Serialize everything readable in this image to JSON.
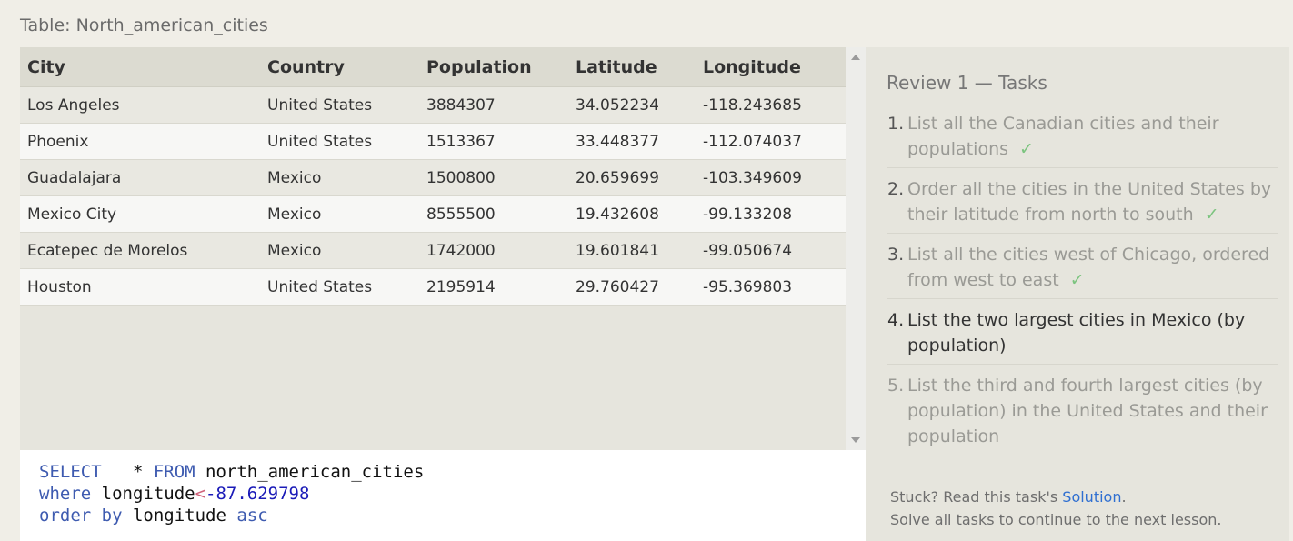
{
  "table": {
    "caption": "Table: North_american_cities",
    "columns": [
      "City",
      "Country",
      "Population",
      "Latitude",
      "Longitude"
    ],
    "rows": [
      [
        "Los Angeles",
        "United States",
        "3884307",
        "34.052234",
        "-118.243685"
      ],
      [
        "Phoenix",
        "United States",
        "1513367",
        "33.448377",
        "-112.074037"
      ],
      [
        "Guadalajara",
        "Mexico",
        "1500800",
        "20.659699",
        "-103.349609"
      ],
      [
        "Mexico City",
        "Mexico",
        "8555500",
        "19.432608",
        "-99.133208"
      ],
      [
        "Ecatepec de Morelos",
        "Mexico",
        "1742000",
        "19.601841",
        "-99.050674"
      ],
      [
        "Houston",
        "United States",
        "2195914",
        "29.760427",
        "-95.369803"
      ]
    ]
  },
  "editor": {
    "line1": {
      "kw1": "SELECT",
      "rest": "   * ",
      "kw2": "FROM",
      "table": " north_american_cities"
    },
    "line2": {
      "kw": "where",
      "col": " longitude",
      "op": "<",
      "num": "-87.629798"
    },
    "line3": {
      "kw1": "order by",
      "col": " longitude ",
      "kw2": "asc"
    }
  },
  "tasks": {
    "title": "Review 1 — Tasks",
    "items": [
      {
        "num": "1.",
        "text": "List all the Canadian cities and their populations",
        "status": "done"
      },
      {
        "num": "2.",
        "text": "Order all the cities in the United States by their latitude from north to south",
        "status": "done"
      },
      {
        "num": "3.",
        "text": "List all the cities west of Chicago, ordered from west to east",
        "status": "done"
      },
      {
        "num": "4.",
        "text": "List the two largest cities in Mexico (by population)",
        "status": "current"
      },
      {
        "num": "5.",
        "text": "List the third and fourth largest cities (by population) in the United States and their population",
        "status": "future"
      }
    ],
    "check_mark": "✓"
  },
  "help": {
    "stuck_prefix": "Stuck? Read this task's ",
    "solution_link": "Solution",
    "stuck_suffix": ".",
    "continue_text": "Solve all tasks to continue to the next lesson."
  },
  "colors": {
    "keyword": "#3e5bb0",
    "number": "#1b1bb8",
    "check": "#7cc47f",
    "link": "#2f6fd1"
  }
}
